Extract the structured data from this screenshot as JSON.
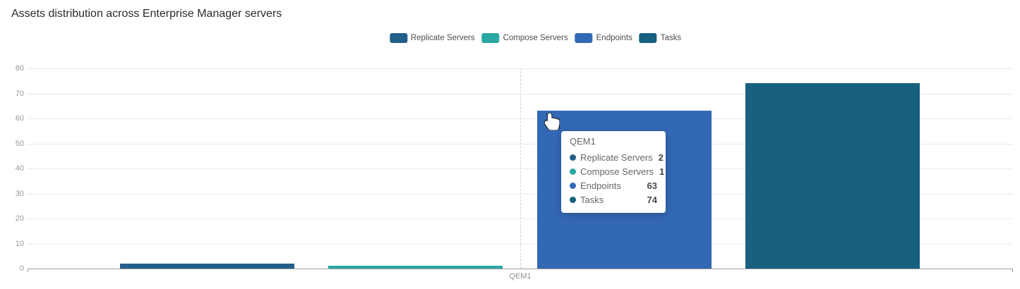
{
  "title": "Assets distribution across Enterprise Manager servers",
  "chart_data": {
    "type": "bar",
    "title": "Assets distribution across Enterprise Manager servers",
    "categories": [
      "QEM1"
    ],
    "series": [
      {
        "name": "Replicate Servers",
        "values": [
          2
        ],
        "color": "#235f87"
      },
      {
        "name": "Compose Servers",
        "values": [
          1
        ],
        "color": "#29a7a3"
      },
      {
        "name": "Endpoints",
        "values": [
          63
        ],
        "color": "#3368b5"
      },
      {
        "name": "Tasks",
        "values": [
          74
        ],
        "color": "#17607f"
      }
    ],
    "xlabel": "",
    "ylabel": "",
    "ylim": [
      0,
      80
    ],
    "yticks": [
      0,
      10,
      20,
      30,
      40,
      50,
      60,
      70,
      80
    ],
    "grid": true,
    "legend_position": "top-center",
    "axis_pointer": {
      "category": "QEM1",
      "style": "dashed-vertical-line"
    }
  },
  "tooltip": {
    "title": "QEM1",
    "rows": [
      {
        "label": "Replicate Servers",
        "value": "2",
        "color": "#235f87"
      },
      {
        "label": "Compose Servers",
        "value": "1",
        "color": "#29a7a3"
      },
      {
        "label": "Endpoints",
        "value": "63",
        "color": "#3368b5"
      },
      {
        "label": "Tasks",
        "value": "74",
        "color": "#17607f"
      }
    ]
  },
  "colors": {
    "grid_line": "#e9e9e9",
    "axis_line": "#9a9a9a",
    "axis_label": "#999999",
    "axis_pointer": "#cfcfcf"
  }
}
